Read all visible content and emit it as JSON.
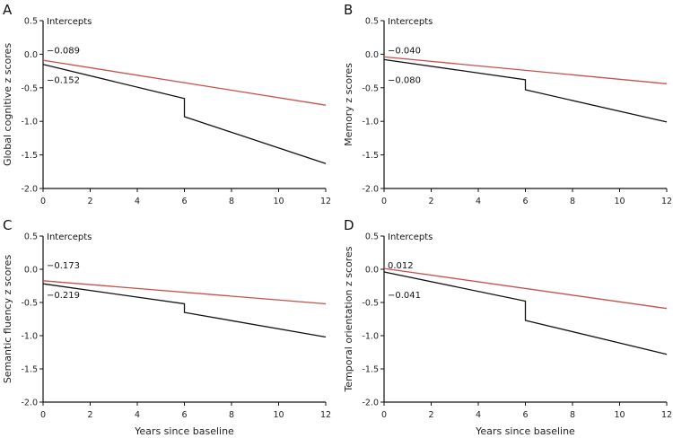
{
  "chart_data": [
    {
      "type": "line",
      "panel": "A",
      "title": "",
      "xlabel": "",
      "ylabel": "Global cognitive z scores",
      "xlim": [
        0,
        12
      ],
      "ylim": [
        -2.0,
        0.5
      ],
      "xticks": [
        0,
        2,
        4,
        6,
        8,
        10,
        12
      ],
      "yticks": [
        "0.5",
        "0.0",
        "-0.5",
        "-1.0",
        "-1.5",
        "-2.0"
      ],
      "annotations": {
        "header": "Intercepts",
        "red_intercept": "−0.089",
        "black_intercept": "−0.152"
      },
      "series": [
        {
          "name": "red",
          "color": "#c8504a",
          "points": [
            [
              0,
              -0.089
            ],
            [
              12,
              -0.76
            ]
          ]
        },
        {
          "name": "black",
          "color": "#111111",
          "points": [
            [
              0,
              -0.152
            ],
            [
              6,
              -0.66
            ],
            [
              6,
              -0.93
            ],
            [
              12,
              -1.63
            ]
          ]
        }
      ],
      "grid": false
    },
    {
      "type": "line",
      "panel": "B",
      "title": "",
      "xlabel": "",
      "ylabel": "Memory z scores",
      "xlim": [
        0,
        12
      ],
      "ylim": [
        -2.0,
        0.5
      ],
      "xticks": [
        0,
        2,
        4,
        6,
        8,
        10,
        12
      ],
      "yticks": [
        "0.5",
        "0.0",
        "-0.5",
        "-1.0",
        "-1.5",
        "-2.0"
      ],
      "annotations": {
        "header": "Intercepts",
        "red_intercept": "−0.040",
        "black_intercept": "−0.080"
      },
      "series": [
        {
          "name": "red",
          "color": "#c8504a",
          "points": [
            [
              0,
              -0.04
            ],
            [
              12,
              -0.44
            ]
          ]
        },
        {
          "name": "black",
          "color": "#111111",
          "points": [
            [
              0,
              -0.08
            ],
            [
              6,
              -0.38
            ],
            [
              6,
              -0.53
            ],
            [
              12,
              -1.01
            ]
          ]
        }
      ],
      "grid": false
    },
    {
      "type": "line",
      "panel": "C",
      "title": "",
      "xlabel": "Years since baseline",
      "ylabel": "Semantic fluency z scores",
      "xlim": [
        0,
        12
      ],
      "ylim": [
        -2.0,
        0.5
      ],
      "xticks": [
        0,
        2,
        4,
        6,
        8,
        10,
        12
      ],
      "yticks": [
        "0.5",
        "0.0",
        "-0.5",
        "-1.0",
        "-1.5",
        "-2.0"
      ],
      "annotations": {
        "header": "Intercepts",
        "red_intercept": "−0.173",
        "black_intercept": "−0.219"
      },
      "series": [
        {
          "name": "red",
          "color": "#c8504a",
          "points": [
            [
              0,
              -0.173
            ],
            [
              12,
              -0.52
            ]
          ]
        },
        {
          "name": "black",
          "color": "#111111",
          "points": [
            [
              0,
              -0.219
            ],
            [
              6,
              -0.52
            ],
            [
              6,
              -0.65
            ],
            [
              12,
              -1.02
            ]
          ]
        }
      ],
      "grid": false
    },
    {
      "type": "line",
      "panel": "D",
      "title": "",
      "xlabel": "Years since baseline",
      "ylabel": "Temporal orientation z scores",
      "xlim": [
        0,
        12
      ],
      "ylim": [
        -2.0,
        0.5
      ],
      "xticks": [
        0,
        2,
        4,
        6,
        8,
        10,
        12
      ],
      "yticks": [
        "0.5",
        "0.0",
        "-0.5",
        "-1.0",
        "-1.5",
        "-2.0"
      ],
      "annotations": {
        "header": "Intercepts",
        "red_intercept": "0.012",
        "black_intercept": "−0.041"
      },
      "series": [
        {
          "name": "red",
          "color": "#c8504a",
          "points": [
            [
              0,
              0.012
            ],
            [
              12,
              -0.59
            ]
          ]
        },
        {
          "name": "black",
          "color": "#111111",
          "points": [
            [
              0,
              -0.041
            ],
            [
              6,
              -0.48
            ],
            [
              6,
              -0.77
            ],
            [
              12,
              -1.28
            ]
          ]
        }
      ],
      "grid": false
    }
  ]
}
